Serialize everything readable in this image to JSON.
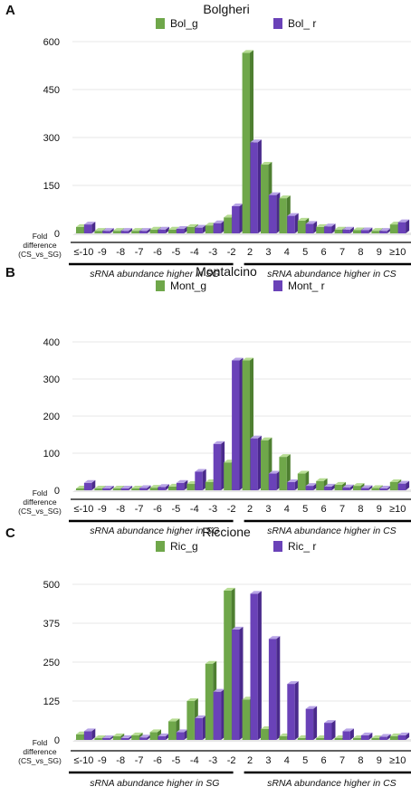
{
  "chart_data": [
    {
      "panel_label": "A",
      "type": "bar",
      "title": "Bolgheri",
      "categories": [
        "≤-10",
        "-9",
        "-8",
        "-7",
        "-6",
        "-5",
        "-4",
        "-3",
        "-2",
        "2",
        "3",
        "4",
        "5",
        "6",
        "7",
        "8",
        "9",
        "≥10"
      ],
      "series": [
        {
          "name": "Bol_g",
          "values": [
            20,
            8,
            8,
            8,
            12,
            12,
            20,
            25,
            50,
            565,
            215,
            110,
            40,
            20,
            12,
            10,
            8,
            28
          ]
        },
        {
          "name": "Bol_ r",
          "values": [
            28,
            8,
            8,
            8,
            12,
            14,
            18,
            32,
            85,
            285,
            120,
            55,
            30,
            22,
            12,
            10,
            8,
            35
          ]
        }
      ],
      "yticks": [
        0,
        150,
        300,
        450,
        600
      ],
      "ylim": [
        0,
        600
      ],
      "ylabel": "Fold difference (CS_vs_SG)",
      "bracket_left": "sRNA abundance higher in SG",
      "bracket_right": "sRNA abundance higher in CS"
    },
    {
      "panel_label": "B",
      "type": "bar",
      "title": "Montalcino",
      "categories": [
        "≤-10",
        "-9",
        "-8",
        "-7",
        "-6",
        "-5",
        "-4",
        "-3",
        "-2",
        "2",
        "3",
        "4",
        "5",
        "6",
        "7",
        "8",
        "9",
        "≥10"
      ],
      "series": [
        {
          "name": "Mont_g",
          "values": [
            3,
            2,
            3,
            5,
            7,
            10,
            17,
            22,
            75,
            350,
            135,
            90,
            45,
            25,
            15,
            12,
            6,
            22
          ]
        },
        {
          "name": "Mont_ r",
          "values": [
            20,
            2,
            3,
            6,
            9,
            20,
            50,
            125,
            350,
            140,
            45,
            22,
            12,
            10,
            8,
            6,
            4,
            18
          ]
        }
      ],
      "yticks": [
        0,
        100,
        200,
        300,
        400
      ],
      "ylim": [
        0,
        400
      ],
      "ylabel": "Fold difference (CS_vs_SG)",
      "bracket_left": "sRNA abundance higher in SG",
      "bracket_right": "sRNA abundance higher in CS"
    },
    {
      "panel_label": "C",
      "type": "bar",
      "title": "Riccione",
      "categories": [
        "≤-10",
        "-9",
        "-8",
        "-7",
        "-6",
        "-5",
        "-4",
        "-3",
        "-2",
        "2",
        "3",
        "4",
        "5",
        "6",
        "7",
        "8",
        "9",
        "≥10"
      ],
      "series": [
        {
          "name": "Ric_g",
          "values": [
            18,
            5,
            12,
            15,
            25,
            60,
            125,
            245,
            480,
            130,
            35,
            12,
            6,
            4,
            3,
            3,
            3,
            12
          ]
        },
        {
          "name": "Ric_ r",
          "values": [
            28,
            5,
            6,
            8,
            12,
            25,
            70,
            155,
            355,
            470,
            325,
            180,
            100,
            55,
            28,
            15,
            10,
            15
          ]
        }
      ],
      "yticks": [
        0,
        125,
        250,
        375,
        500
      ],
      "ylim": [
        0,
        500
      ],
      "ylabel": "Fold difference (CS_vs_SG)",
      "bracket_left": "sRNA abundance higher in SG",
      "bracket_right": "sRNA abundance higher in CS"
    }
  ],
  "colors": {
    "green_front": "#6fa74a",
    "green_side": "#4e7f31",
    "green_top": "#b6dc92",
    "purple_front": "#6a42b8",
    "purple_side": "#4a2a8c",
    "purple_top": "#b7a3e6",
    "gridline": "#cfcfcf",
    "text": "#111111"
  }
}
